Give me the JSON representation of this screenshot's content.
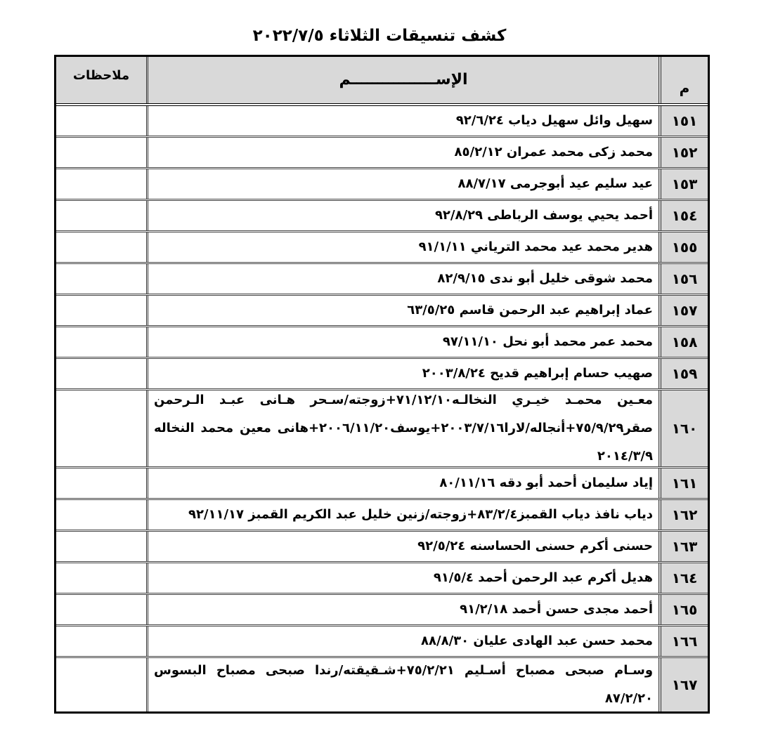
{
  "title": "كشف تنسيقات الثلاثاء ٢٠٢٢/٧/٥",
  "headers": {
    "num": "م",
    "name": "الإســــــــــــــــم",
    "notes": "ملاحظات"
  },
  "rows": [
    {
      "num": "١٥١",
      "name": "سهيل وائل سهيل دياب ٩٢/٦/٢٤",
      "notes": ""
    },
    {
      "num": "١٥٢",
      "name": "محمد زكى محمد عمران ٨٥/٢/١٢",
      "notes": ""
    },
    {
      "num": "١٥٣",
      "name": "عيد سليم عيد أبوجرمى ٨٨/٧/١٧",
      "notes": ""
    },
    {
      "num": "١٥٤",
      "name": "أحمد يحيي يوسف الرباطى ٩٢/٨/٢٩",
      "notes": ""
    },
    {
      "num": "١٥٥",
      "name": "هدير محمد عيد محمد الترياني ٩١/١/١١",
      "notes": ""
    },
    {
      "num": "١٥٦",
      "name": "محمد شوقى خليل أبو ندى ٨٢/٩/١٥",
      "notes": ""
    },
    {
      "num": "١٥٧",
      "name": "عماد إبراهيم عبد الرحمن قاسم ٦٣/٥/٢٥",
      "notes": ""
    },
    {
      "num": "١٥٨",
      "name": "محمد عمر محمد أبو نحل ٩٧/١١/١٠",
      "notes": ""
    },
    {
      "num": "١٥٩",
      "name": "صهيب حسام إبراهيم قديح ٢٠٠٣/٨/٢٤",
      "notes": ""
    },
    {
      "num": "١٦٠",
      "name": "معـين محمـد خيـري النخالـه٧١/١٢/١٠+زوجته/سـحر هـانى عبـد الـرحمن صقر٧٥/٩/٢٩+أنجاله/لارا٢٠٠٣/٧/١٦+يوسف٢٠٠٦/١١/٢٠+هانى معين محمد النخاله ٢٠١٤/٣/٩",
      "notes": ""
    },
    {
      "num": "١٦١",
      "name": "إياد سليمان أحمد أبو دقه ٨٠/١١/١٦",
      "notes": ""
    },
    {
      "num": "١٦٢",
      "name": "دياب نافذ دياب القمبز٨٣/٢/٤+زوجته/زنين خليل عبد الكريم القمبز ٩٢/١١/١٧",
      "notes": ""
    },
    {
      "num": "١٦٣",
      "name": "حسنى أكرم حسنى الحساسنه ٩٢/٥/٢٤",
      "notes": ""
    },
    {
      "num": "١٦٤",
      "name": "هديل أكرم عبد الرحمن أحمد ٩١/٥/٤",
      "notes": ""
    },
    {
      "num": "١٦٥",
      "name": "أحمد مجدى حسن أحمد ٩١/٢/١٨",
      "notes": ""
    },
    {
      "num": "١٦٦",
      "name": "محمد حسن عبد الهادى عليان ٨٨/٨/٣٠",
      "notes": ""
    },
    {
      "num": "١٦٧",
      "name": "وسـام صبحى مصباح أسـليم ٧٥/٢/٢١+شـقيقته/رندا صبحى مصباح البسوس ٨٧/٢/٢٠",
      "notes": ""
    }
  ]
}
